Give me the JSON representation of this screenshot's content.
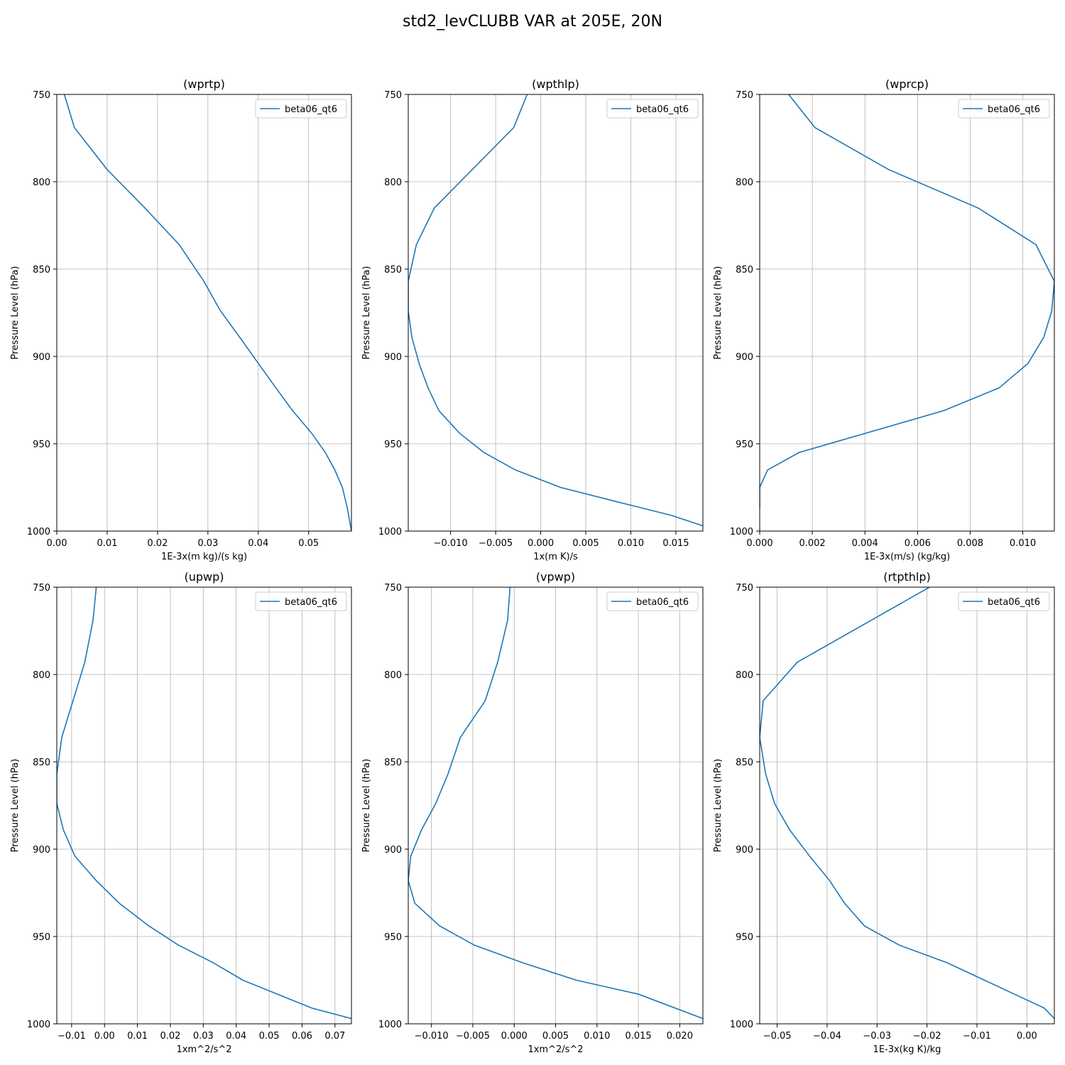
{
  "figure": {
    "title": "std2_levCLUBB VAR at 205E, 20N"
  },
  "chart_data": [
    {
      "type": "line",
      "title": "(wprtp)",
      "xlabel": "1E-3x(m kg)/(s kg)",
      "ylabel": "Pressure Level (hPa)",
      "xlim": [
        0,
        0.0585
      ],
      "ylim": [
        1000,
        750
      ],
      "y_inverted": true,
      "xticks": [
        0,
        0.01,
        0.02,
        0.03,
        0.04,
        0.05
      ],
      "xtick_labels": [
        "0.00",
        "0.01",
        "0.02",
        "0.03",
        "0.04",
        "0.05"
      ],
      "yticks": [
        750,
        800,
        850,
        900,
        950,
        1000
      ],
      "ytick_labels": [
        "750",
        "800",
        "850",
        "900",
        "950",
        "1000"
      ],
      "grid": true,
      "legend": "top-right",
      "series": [
        {
          "name": "beta06_qt6",
          "x": [
            0.0015,
            0.0035,
            0.01,
            0.0175,
            0.0243,
            0.0292,
            0.0325,
            0.0363,
            0.04,
            0.0435,
            0.0468,
            0.0506,
            0.0533,
            0.0552,
            0.0567,
            0.0577,
            0.0585
          ],
          "y": [
            750,
            769,
            793,
            815,
            836,
            857,
            874,
            889,
            904,
            918,
            931,
            944,
            955,
            965,
            975,
            987,
            1000
          ]
        }
      ]
    },
    {
      "type": "line",
      "title": "(wpthlp)",
      "xlabel": "1x(m K)/s",
      "ylabel": "Pressure Level (hPa)",
      "xlim": [
        -0.0147,
        0.018
      ],
      "ylim": [
        1000,
        750
      ],
      "y_inverted": true,
      "xticks": [
        -0.01,
        -0.005,
        0,
        0.005,
        0.01,
        0.015
      ],
      "xtick_labels": [
        "−0.010",
        "−0.005",
        "0.000",
        "0.005",
        "0.010",
        "0.015"
      ],
      "yticks": [
        750,
        800,
        850,
        900,
        950,
        1000
      ],
      "ytick_labels": [
        "750",
        "800",
        "850",
        "900",
        "950",
        "1000"
      ],
      "grid": true,
      "legend": "top-right",
      "series": [
        {
          "name": "beta06_qt6",
          "x": [
            -0.0015,
            -0.003,
            -0.0118,
            -0.0138,
            -0.0147,
            -0.0147,
            -0.0143,
            -0.0135,
            -0.0125,
            -0.0113,
            -0.009,
            -0.0063,
            -0.0028,
            0.0022,
            0.0083,
            0.0145,
            0.018
          ],
          "y": [
            750,
            769,
            815,
            836,
            857,
            874,
            889,
            904,
            918,
            931,
            944,
            955,
            965,
            975,
            983,
            991,
            997
          ]
        }
      ]
    },
    {
      "type": "line",
      "title": "(wprcp)",
      "xlabel": "1E-3x(m/s) (kg/kg)",
      "ylabel": "Pressure Level (hPa)",
      "xlim": [
        0,
        0.0112
      ],
      "ylim": [
        1000,
        750
      ],
      "y_inverted": true,
      "xticks": [
        0,
        0.002,
        0.004,
        0.006,
        0.008,
        0.01
      ],
      "xtick_labels": [
        "0.000",
        "0.002",
        "0.004",
        "0.006",
        "0.008",
        "0.010"
      ],
      "yticks": [
        750,
        800,
        850,
        900,
        950,
        1000
      ],
      "ytick_labels": [
        "750",
        "800",
        "850",
        "900",
        "950",
        "1000"
      ],
      "grid": true,
      "legend": "top-right",
      "series": [
        {
          "name": "beta06_qt6",
          "x": [
            0.0011,
            0.0021,
            0.0049,
            0.0083,
            0.0105,
            0.0112,
            0.0111,
            0.0108,
            0.0102,
            0.0091,
            0.007,
            0.0015,
            0.0003,
            0.0,
            0.0
          ],
          "y": [
            750,
            769,
            793,
            815,
            836,
            857,
            874,
            889,
            904,
            918,
            931,
            955,
            965,
            975,
            987
          ]
        }
      ]
    },
    {
      "type": "line",
      "title": "(upwp)",
      "xlabel": "1xm^2/s^2",
      "ylabel": "Pressure Level (hPa)",
      "xlim": [
        -0.0145,
        0.075
      ],
      "ylim": [
        1000,
        750
      ],
      "y_inverted": true,
      "xticks": [
        -0.01,
        0,
        0.01,
        0.02,
        0.03,
        0.04,
        0.05,
        0.06,
        0.07
      ],
      "xtick_labels": [
        "−0.01",
        "0.00",
        "0.01",
        "0.02",
        "0.03",
        "0.04",
        "0.05",
        "0.06",
        "0.07"
      ],
      "yticks": [
        750,
        800,
        850,
        900,
        950,
        1000
      ],
      "ytick_labels": [
        "750",
        "800",
        "850",
        "900",
        "950",
        "1000"
      ],
      "grid": true,
      "legend": "top-right",
      "series": [
        {
          "name": "beta06_qt6",
          "x": [
            -0.0025,
            -0.0035,
            -0.006,
            -0.013,
            -0.0145,
            -0.0145,
            -0.0125,
            -0.009,
            -0.0025,
            0.0045,
            0.0135,
            0.0225,
            0.033,
            0.042,
            0.0525,
            0.063,
            0.075
          ],
          "y": [
            750,
            769,
            793,
            836,
            857,
            874,
            889,
            904,
            918,
            931,
            944,
            955,
            965,
            975,
            983,
            991,
            997
          ]
        }
      ]
    },
    {
      "type": "line",
      "title": "(vpwp)",
      "xlabel": "1xm^2/s^2",
      "ylabel": "Pressure Level (hPa)",
      "xlim": [
        -0.0128,
        0.0228
      ],
      "ylim": [
        1000,
        750
      ],
      "y_inverted": true,
      "xticks": [
        -0.01,
        -0.005,
        0,
        0.005,
        0.01,
        0.015,
        0.02
      ],
      "xtick_labels": [
        "−0.010",
        "−0.005",
        "0.000",
        "0.005",
        "0.010",
        "0.015",
        "0.020"
      ],
      "yticks": [
        750,
        800,
        850,
        900,
        950,
        1000
      ],
      "ytick_labels": [
        "750",
        "800",
        "850",
        "900",
        "950",
        "1000"
      ],
      "grid": true,
      "legend": "top-right",
      "series": [
        {
          "name": "beta06_qt6",
          "x": [
            -0.0005,
            -0.0008,
            -0.002,
            -0.0035,
            -0.0065,
            -0.008,
            -0.0095,
            -0.0112,
            -0.0125,
            -0.0128,
            -0.012,
            -0.009,
            -0.0048,
            0.001,
            0.0075,
            0.015,
            0.0228
          ],
          "y": [
            750,
            769,
            793,
            815,
            836,
            857,
            874,
            889,
            904,
            918,
            931,
            944,
            955,
            965,
            975,
            983,
            997
          ]
        }
      ]
    },
    {
      "type": "line",
      "title": "(rtpthlp)",
      "xlabel": "1E-3x(kg K)/kg",
      "ylabel": "Pressure Level (hPa)",
      "xlim": [
        -0.0535,
        0.0055
      ],
      "ylim": [
        1000,
        750
      ],
      "y_inverted": true,
      "xticks": [
        -0.05,
        -0.04,
        -0.03,
        -0.02,
        -0.01,
        0
      ],
      "xtick_labels": [
        "−0.05",
        "−0.04",
        "−0.03",
        "−0.02",
        "−0.01",
        "0.00"
      ],
      "yticks": [
        750,
        800,
        850,
        900,
        950,
        1000
      ],
      "ytick_labels": [
        "750",
        "800",
        "850",
        "900",
        "950",
        "1000"
      ],
      "grid": true,
      "legend": "top-right",
      "series": [
        {
          "name": "beta06_qt6",
          "x": [
            -0.0195,
            -0.046,
            -0.0528,
            -0.0535,
            -0.0523,
            -0.0505,
            -0.0475,
            -0.0435,
            -0.0395,
            -0.0365,
            -0.0325,
            -0.0255,
            -0.016,
            -0.0085,
            -0.0025,
            0.0035,
            0.0055
          ],
          "y": [
            750,
            793,
            815,
            836,
            857,
            874,
            889,
            904,
            918,
            931,
            944,
            955,
            965,
            975,
            983,
            991,
            997
          ]
        }
      ]
    }
  ],
  "colors": {
    "line": "#1f77b4",
    "grid": "#b0b0b0",
    "axes": "#000000",
    "legend_border": "#cccccc"
  }
}
